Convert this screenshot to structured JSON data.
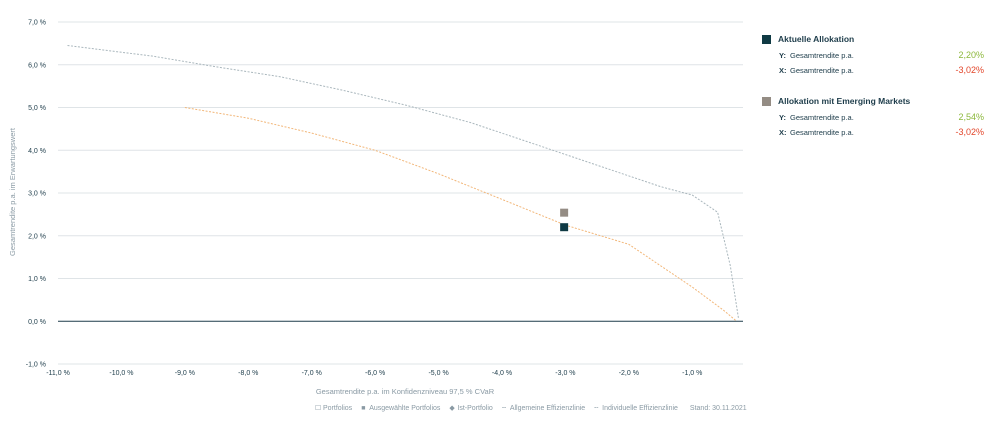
{
  "chart_data": {
    "type": "line",
    "xlabel": "Gesamtrendite p.a. im Konfidenzniveau 97,5 % CVaR",
    "ylabel": "Gesamtrendite p.a. im Erwartungswert",
    "xlim": [
      -11.0,
      -0.2
    ],
    "ylim": [
      -1.0,
      7.0
    ],
    "x_ticks": [
      "-11,0 %",
      "-10,0 %",
      "-9,0 %",
      "-8,0 %",
      "-7,0 %",
      "-6,0 %",
      "-5,0 %",
      "-4,0 %",
      "-3,0 %",
      "-2,0 %",
      "-1,0 %"
    ],
    "x_tick_values": [
      -11,
      -10,
      -9,
      -8,
      -7,
      -6,
      -5,
      -4,
      -3,
      -2,
      -1
    ],
    "y_ticks": [
      "7,0 %",
      "6,0 %",
      "5,0 %",
      "4,0 %",
      "3,0 %",
      "2,0 %",
      "1,0 %",
      "0,0 %",
      "-1,0 %"
    ],
    "y_tick_values": [
      7,
      6,
      5,
      4,
      3,
      2,
      1,
      0,
      -1
    ],
    "grid": "horizontal",
    "series": [
      {
        "name": "Allgemeine Effizienzlinie",
        "color": "#aab7bd",
        "style": "dashed",
        "x": [
          -10.85,
          -9.5,
          -8.5,
          -7.5,
          -6.5,
          -5.5,
          -4.5,
          -3.5,
          -2.5,
          -1.5,
          -1.0,
          -0.6,
          -0.4,
          -0.27
        ],
        "y": [
          6.45,
          6.2,
          5.95,
          5.72,
          5.4,
          5.05,
          4.65,
          4.15,
          3.65,
          3.15,
          2.95,
          2.55,
          1.3,
          0.05
        ]
      },
      {
        "name": "Individuelle Effizienzlinie",
        "color": "#f2b77a",
        "style": "dashed",
        "x": [
          -9.0,
          -8.0,
          -7.0,
          -6.0,
          -5.0,
          -4.0,
          -3.0,
          -2.0,
          -1.5,
          -1.0,
          -0.5,
          -0.3
        ],
        "y": [
          5.0,
          4.75,
          4.4,
          4.0,
          3.45,
          2.85,
          2.25,
          1.8,
          1.3,
          0.8,
          0.25,
          0.0
        ]
      }
    ],
    "points": [
      {
        "name": "Aktuelle Allokation",
        "x": -3.02,
        "y": 2.2,
        "color": "#0f3a44"
      },
      {
        "name": "Allokation mit Emerging Markets",
        "x": -3.02,
        "y": 2.54,
        "color": "#948c84"
      }
    ],
    "legend": {
      "items": [
        {
          "symbol": "☐",
          "label": "Portfolios"
        },
        {
          "symbol": "■",
          "label": "Ausgewählte Portfolios"
        },
        {
          "symbol": "◆",
          "label": "Ist-Portfolio"
        },
        {
          "symbol": "╌",
          "label": "Allgemeine Effizienzlinie"
        },
        {
          "symbol": "╌",
          "label": "Individuelle Effizienzlinie"
        }
      ],
      "stand": "Stand: 30.11.2021"
    }
  },
  "panel": {
    "groups": [
      {
        "title": "Aktuelle Allokation",
        "color": "#0f3a44",
        "rows": [
          {
            "label": "Y:",
            "desc": "Gesamtrendite p.a.",
            "value": "2,20%",
            "value_color": "#8cb83c"
          },
          {
            "label": "X:",
            "desc": "Gesamtrendite p.a.",
            "value": "-3,02%",
            "value_color": "#e2452a"
          }
        ]
      },
      {
        "title": "Allokation mit Emerging Markets",
        "color": "#948c84",
        "rows": [
          {
            "label": "Y:",
            "desc": "Gesamtrendite p.a.",
            "value": "2,54%",
            "value_color": "#8cb83c"
          },
          {
            "label": "X:",
            "desc": "Gesamtrendite p.a.",
            "value": "-3,02%",
            "value_color": "#e2452a"
          }
        ]
      }
    ]
  }
}
